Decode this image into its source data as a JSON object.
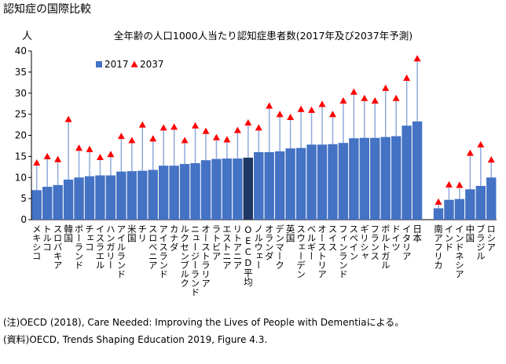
{
  "chart_data": {
    "type": "bar",
    "heading": "認知症の国際比較",
    "title": "全年齢の人口1000人当たり認知症患者数(2017年及び2037年予測)",
    "y_unit": "人",
    "categories": [
      "メキシコ",
      "トルコ",
      "スロバキア",
      "韓国",
      "ポーランド",
      "チェコ",
      "イスラエル",
      "ハンガリー",
      "アイルランド",
      "米国",
      "チリ",
      "スロベニア",
      "アイスランド",
      "カナダ",
      "ルクセンブルク",
      "ニュージーランド",
      "オーストラリア",
      "ラトビア",
      "エストニア",
      "リトアニア",
      "OECD平均",
      "ノルウェー",
      "オランダ",
      "デンマーク",
      "英国",
      "スウェーデン",
      "ベルギー",
      "オーストリア",
      "スイス",
      "フィンランド",
      "スペイン",
      "ギリシャ",
      "フランス",
      "ポルトガル",
      "ドイツ",
      "イタリア",
      "日本",
      null,
      "南アフリカ",
      "インド",
      "インドネシア",
      "中国",
      "ブラジル",
      "ロシア"
    ],
    "series": [
      {
        "name": "2017",
        "color": "#4472c4",
        "marker": "bar",
        "values": [
          7.0,
          7.8,
          8.2,
          9.5,
          10.0,
          10.3,
          10.5,
          10.5,
          11.4,
          11.5,
          11.6,
          11.8,
          12.8,
          12.8,
          13.2,
          13.4,
          14.1,
          14.4,
          14.5,
          14.5,
          14.7,
          16.0,
          16.0,
          16.2,
          16.9,
          17.0,
          17.8,
          17.8,
          17.9,
          18.2,
          19.3,
          19.4,
          19.4,
          19.6,
          19.8,
          22.3,
          23.3,
          null,
          2.7,
          4.7,
          4.9,
          7.2,
          8.0,
          10.0
        ]
      },
      {
        "name": "2037",
        "color": "#ff0000",
        "marker": "triangle",
        "values": [
          13.5,
          15.0,
          14.3,
          23.8,
          17.0,
          16.7,
          14.8,
          15.5,
          19.8,
          18.8,
          22.5,
          19.2,
          21.8,
          22.0,
          18.8,
          22.3,
          21.0,
          19.5,
          19.0,
          21.2,
          23.0,
          21.8,
          27.0,
          25.0,
          24.3,
          26.2,
          26.0,
          27.4,
          25.0,
          28.2,
          30.3,
          28.8,
          28.2,
          31.2,
          28.8,
          33.6,
          38.2,
          null,
          4.2,
          8.3,
          8.2,
          15.8,
          17.8,
          14.2
        ]
      }
    ],
    "highlight": {
      "category": "OECD平均",
      "color": "#1f3864"
    },
    "connector_color": "#8faadc",
    "ylim": [
      0,
      40
    ],
    "yticks": [
      0,
      5,
      10,
      15,
      20,
      25,
      30,
      35,
      40
    ],
    "grid": false,
    "legend": "top-left",
    "notes": [
      "(注)OECD (2018), Care Needed: Improving the Lives of People with Dementiaによる。",
      "(資料)OECD, Trends Shaping Education 2019, Figure 4.3."
    ]
  }
}
